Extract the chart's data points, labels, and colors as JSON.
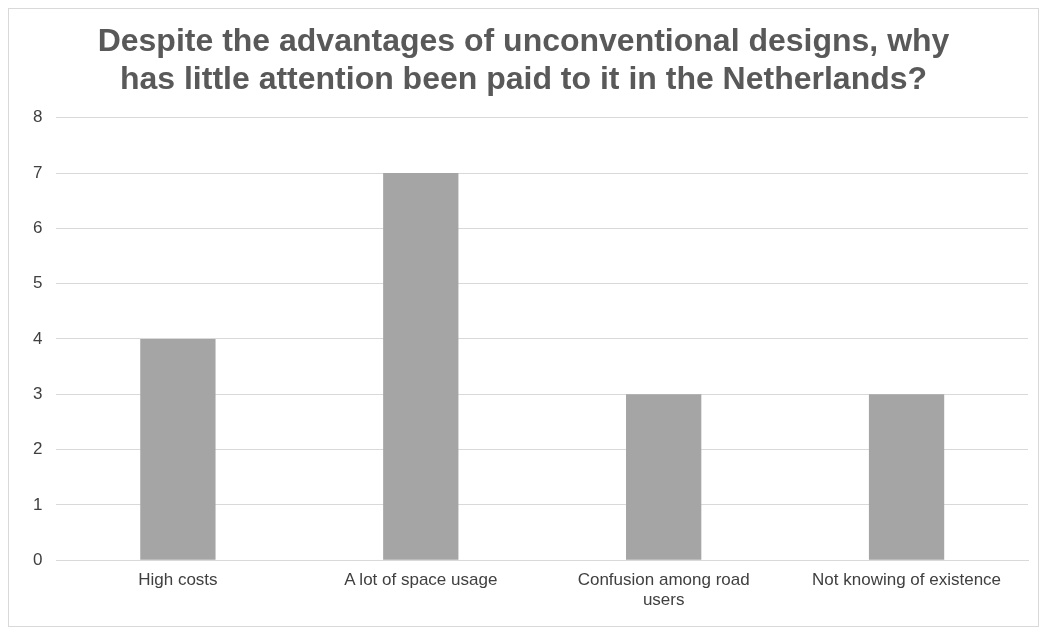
{
  "chart_data": {
    "type": "bar",
    "title": "Despite the advantages of unconventional designs, why has little attention been paid to it in the Netherlands?",
    "categories": [
      "High costs",
      "A lot of space usage",
      "Confusion among road users",
      "Not knowing of existence"
    ],
    "values": [
      4,
      7,
      3,
      3
    ],
    "color": "#a5a5a5",
    "ylim": [
      0,
      8
    ],
    "yticks": [
      0,
      1,
      2,
      3,
      4,
      5,
      6,
      7,
      8
    ],
    "grid": "y",
    "legend": false
  }
}
